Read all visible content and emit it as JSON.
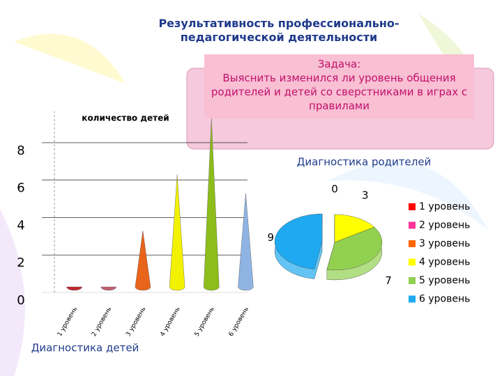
{
  "title": "Результативность профессионально-педагогической деятельности",
  "task": {
    "heading": "Задача:",
    "text": "Выяснить изменился ли уровень общения родителей и детей со сверстниками в играх с правилами"
  },
  "chart_data": [
    {
      "type": "cone",
      "title": "количество детей",
      "caption": "Диагностика детей",
      "categories": [
        "1 уровень",
        "2 уровень",
        "3 уровень",
        "4 уровень",
        "5 уровень",
        "6 уровень"
      ],
      "values": [
        0,
        0,
        3,
        6,
        9,
        5
      ],
      "colors": [
        "#c0282c",
        "#c06070",
        "#e8641a",
        "#f2f200",
        "#8cbd1a",
        "#8fb4e3"
      ],
      "ylim": [
        0,
        9
      ],
      "yticks": [
        0,
        2,
        4,
        6,
        8
      ],
      "grid": true
    },
    {
      "type": "pie",
      "title": "Диагностика родителей",
      "categories": [
        "1 уровень",
        "2 уровень",
        "3 уровень",
        "4 уровень",
        "5 уровень",
        "6 уровень"
      ],
      "values": [
        null,
        null,
        0,
        3,
        7,
        9
      ],
      "colors": [
        "#ff0000",
        "#ff3399",
        "#ff6600",
        "#ffff00",
        "#92d050",
        "#1fa9f0"
      ],
      "legend": "right"
    }
  ]
}
